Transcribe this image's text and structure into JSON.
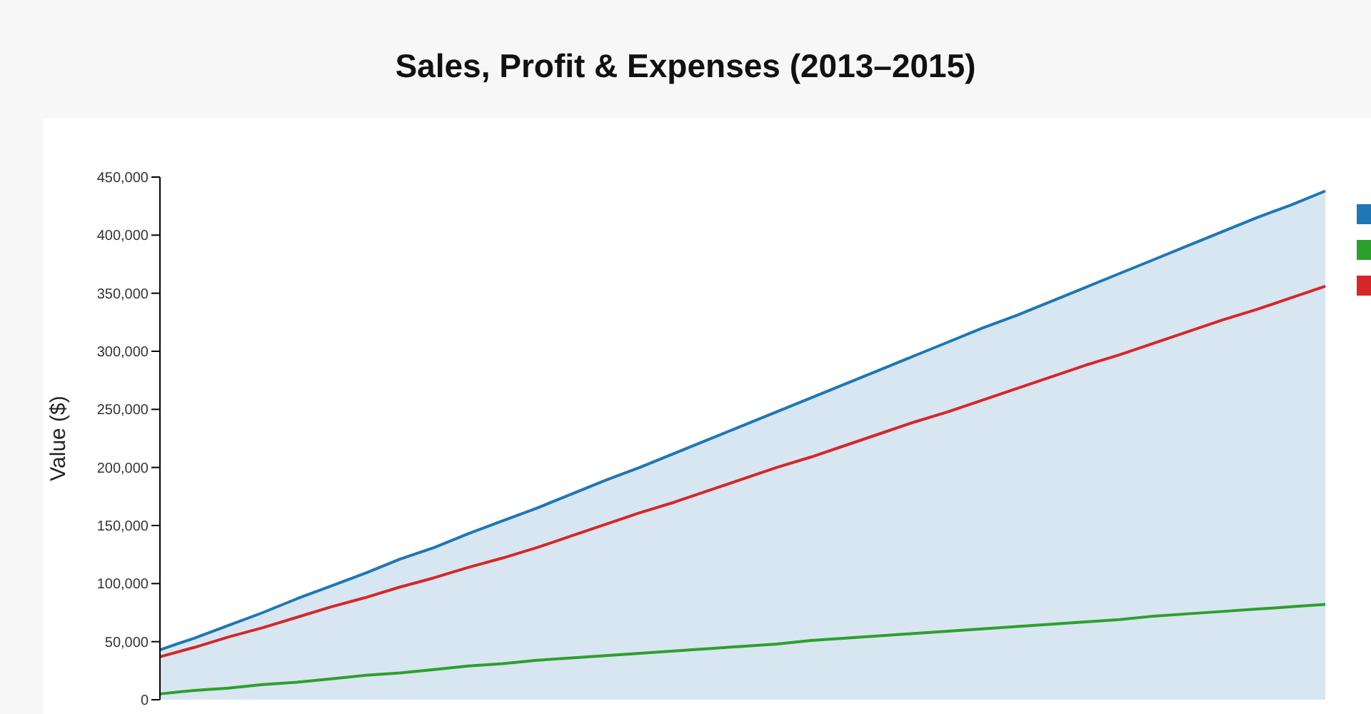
{
  "chart_data": {
    "type": "line",
    "title": "Sales, Profit & Expenses (2013–2015)",
    "ylabel": "Value ($)",
    "categories": [
      null,
      null,
      null,
      null,
      null,
      null,
      null,
      null,
      null,
      null,
      null,
      null,
      null,
      null,
      null,
      null,
      null,
      null,
      null,
      null,
      null,
      null,
      null,
      null,
      null,
      null,
      null,
      null,
      null,
      null,
      null,
      null,
      null,
      null,
      null
    ],
    "series": [
      {
        "type": "area",
        "color": "#1f77b4",
        "values": [
          43000,
          53000,
          64000,
          75000,
          87000,
          98000,
          109000,
          121000,
          131000,
          143000,
          154000,
          165000,
          177000,
          189000,
          200000,
          212000,
          224000,
          236000,
          248000,
          260000,
          272000,
          284000,
          296000,
          308000,
          320000,
          331000,
          343000,
          355000,
          367000,
          379000,
          391000,
          403000,
          415000,
          426000,
          438000
        ]
      },
      {
        "color": "#2ca02c",
        "values": [
          5000,
          8000,
          10000,
          13000,
          15000,
          18000,
          21000,
          23000,
          26000,
          29000,
          31000,
          34000,
          36000,
          38000,
          40000,
          42000,
          44000,
          46000,
          48000,
          51000,
          53000,
          55000,
          57000,
          59000,
          61000,
          63000,
          65000,
          67000,
          69000,
          72000,
          74000,
          76000,
          78000,
          80000,
          82000
        ]
      },
      {
        "color": "#d62728",
        "values": [
          37000,
          45000,
          54000,
          62000,
          71000,
          80000,
          88000,
          97000,
          105000,
          114000,
          122000,
          131000,
          141000,
          151000,
          161000,
          170000,
          180000,
          190000,
          200000,
          209000,
          219000,
          229000,
          239000,
          248000,
          258000,
          268000,
          278000,
          288000,
          297000,
          307000,
          317000,
          327000,
          336000,
          346000,
          356000
        ]
      }
    ],
    "ylim": [
      0,
      450000
    ],
    "yticks": [
      {
        "value": 0,
        "label": "0"
      },
      {
        "value": 50000,
        "label": "50,000"
      },
      {
        "value": 100000,
        "label": "100,000"
      },
      {
        "value": 150000,
        "label": "150,000"
      },
      {
        "value": 200000,
        "label": "200,000"
      },
      {
        "value": 250000,
        "label": "250,000"
      },
      {
        "value": 300000,
        "label": "300,000"
      },
      {
        "value": 350000,
        "label": "350,000"
      },
      {
        "value": 400000,
        "label": "400,000"
      },
      {
        "value": 450000,
        "label": "450,000"
      }
    ],
    "tick_labels": "y",
    "marker": "none",
    "line_style": "solid",
    "grid": false
  }
}
